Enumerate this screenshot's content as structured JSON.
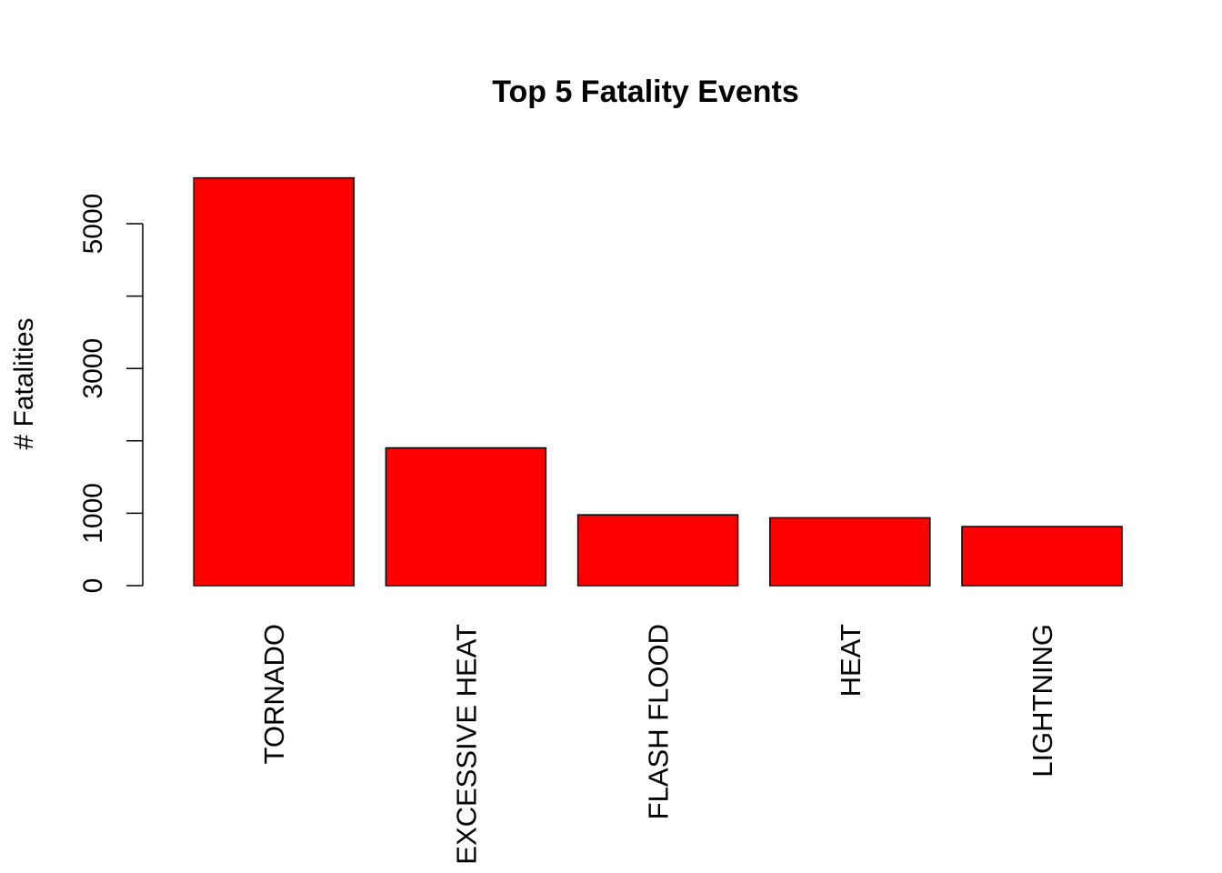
{
  "chart_data": {
    "type": "bar",
    "title": "Top 5 Fatality Events",
    "xlabel": "",
    "ylabel": "# Fatalities",
    "categories": [
      "TORNADO",
      "EXCESSIVE HEAT",
      "FLASH FLOOD",
      "HEAT",
      "LIGHTNING"
    ],
    "values": [
      5633,
      1903,
      978,
      937,
      816
    ],
    "ylim": [
      0,
      5633
    ],
    "yticks": [
      0,
      1000,
      2000,
      3000,
      4000,
      5000
    ],
    "ytick_labels": [
      "0",
      "1000",
      "",
      "3000",
      "",
      "5000"
    ],
    "bar_color": "#ff0000",
    "bar_border_color": "#000000",
    "grid": false,
    "legend": "none"
  }
}
